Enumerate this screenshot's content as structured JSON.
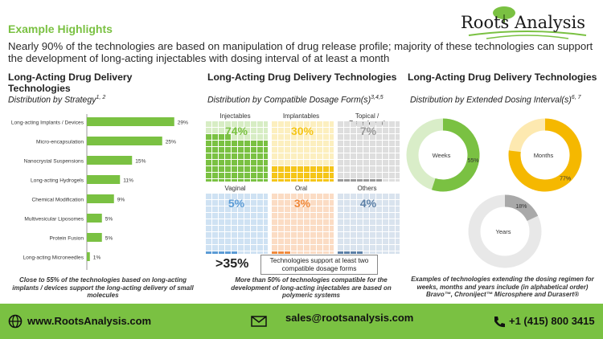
{
  "header": {
    "title": "Example Highlights",
    "headline": "Nearly 90% of the technologies are based on manipulation of drug release profile; majority of these technologies can support the development of long-acting injectables with dosing interval of at least a month",
    "logo": "Roots Analysis"
  },
  "panels": {
    "strategy": {
      "title": "Long-Acting Drug Delivery Technologies",
      "subtitle": "Distribution by Strategy",
      "subtitle_ref": "1, 2",
      "caption": "Close to 55% of the technologies based on long-acting implants / devices support the long-acting delivery of small molecules"
    },
    "dosage": {
      "title": "Long-Acting Drug Delivery Technologies",
      "subtitle": "Distribution by Compatible Dosage Form(s)",
      "subtitle_ref": "3,4,5",
      "stat_value": ">35%",
      "stat_text": "Technologies support at least two compatible dosage forms",
      "caption": "More than 50% of technologies compatible for the development of long-acting injectables are based on polymeric systems"
    },
    "interval": {
      "title": "Long-Acting Drug Delivery Technologies",
      "subtitle": "Distribution by Extended Dosing Interval(s)",
      "subtitle_ref": "6, 7",
      "caption": "Examples of technologies extending the dosing regimen for weeks, months and years include (in alphabetical order) Bravo™, Chroniject™ Microsphere and Durasert®"
    }
  },
  "chart_data": [
    {
      "type": "bar",
      "orientation": "horizontal",
      "categories": [
        "Long-acting Implants / Devices",
        "Micro-encapsulation",
        "Nanocrystal Suspensions",
        "Long-acting Hydrogels",
        "Chemical Modification",
        "Multivesicular Liposomes",
        "Protein Fusion",
        "Long-acting Microneedles"
      ],
      "values": [
        29,
        25,
        15,
        11,
        9,
        5,
        5,
        1
      ],
      "value_suffix": "%",
      "color": "#7ac142",
      "xlim": [
        0,
        32
      ]
    },
    {
      "type": "waffle",
      "categories": [
        "Injectables",
        "Implantables",
        "Topical / Transdermal",
        "Vaginal",
        "Oral",
        "Others"
      ],
      "values": [
        74,
        30,
        7,
        5,
        3,
        4
      ],
      "value_suffix": "%",
      "colors": [
        "#7ac142",
        "#f5c518",
        "#9a9a9a",
        "#5b9bd5",
        "#f08a3c",
        "#5b7fa6"
      ],
      "light_colors": [
        "#d7edc4",
        "#fcefbf",
        "#dedede",
        "#cfe2f3",
        "#fbdcc4",
        "#d9e3ee"
      ]
    },
    {
      "type": "pie",
      "style": "donut",
      "slices": [
        {
          "label": "Weeks",
          "value": 55,
          "value_label": "55%",
          "color": "#7ac142",
          "track": "#d9edc8"
        },
        {
          "label": "Months",
          "value": 77,
          "value_label": "77%",
          "color": "#f5b800",
          "track": "#fde9b0"
        },
        {
          "label": "Years",
          "value": 18,
          "value_label": "18%",
          "color": "#a9a9a9",
          "track": "#e8e8e8"
        }
      ]
    }
  ],
  "footer": {
    "website": "www.RootsAnalysis.com",
    "email": "sales@rootsanalysis.com",
    "phone": "+1 (415) 800 3415",
    "background": "#7ac142",
    "icons": [
      "globe-icon",
      "envelope-icon",
      "phone-icon"
    ]
  }
}
